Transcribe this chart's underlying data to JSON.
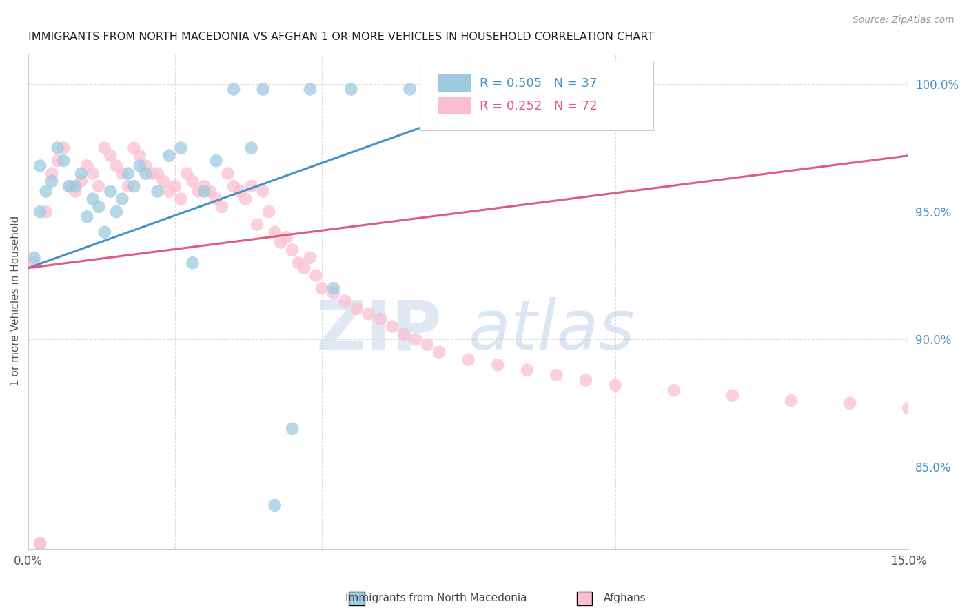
{
  "title": "IMMIGRANTS FROM NORTH MACEDONIA VS AFGHAN 1 OR MORE VEHICLES IN HOUSEHOLD CORRELATION CHART",
  "source": "Source: ZipAtlas.com",
  "ylabel": "1 or more Vehicles in Household",
  "ylabel_right_ticks": [
    "100.0%",
    "95.0%",
    "90.0%",
    "85.0%"
  ],
  "ylabel_right_values": [
    1.0,
    0.95,
    0.9,
    0.85
  ],
  "xmin": 0.0,
  "xmax": 0.15,
  "ymin": 0.818,
  "ymax": 1.012,
  "legend_label_blue": "Immigrants from North Macedonia",
  "legend_label_pink": "Afghans",
  "R_blue": "0.505",
  "N_blue": "37",
  "R_pink": "0.252",
  "N_pink": "72",
  "color_blue": "#9ecae1",
  "color_pink": "#fcbfd2",
  "color_blue_line": "#4292c6",
  "color_pink_line": "#e05c7a",
  "color_blue_text": "#4292c6",
  "color_pink_text": "#e05c7a",
  "blue_scatter_x": [
    0.001,
    0.002,
    0.002,
    0.003,
    0.004,
    0.005,
    0.006,
    0.007,
    0.008,
    0.009,
    0.01,
    0.011,
    0.012,
    0.013,
    0.014,
    0.015,
    0.016,
    0.017,
    0.018,
    0.019,
    0.02,
    0.022,
    0.024,
    0.026,
    0.028,
    0.03,
    0.032,
    0.035,
    0.038,
    0.04,
    0.042,
    0.045,
    0.048,
    0.052,
    0.055,
    0.065,
    0.09
  ],
  "blue_scatter_y": [
    0.932,
    0.95,
    0.968,
    0.958,
    0.962,
    0.975,
    0.97,
    0.96,
    0.96,
    0.965,
    0.948,
    0.955,
    0.952,
    0.942,
    0.958,
    0.95,
    0.955,
    0.965,
    0.96,
    0.968,
    0.965,
    0.958,
    0.972,
    0.975,
    0.93,
    0.958,
    0.97,
    0.998,
    0.975,
    0.998,
    0.835,
    0.865,
    0.998,
    0.92,
    0.998,
    0.998,
    0.998
  ],
  "pink_scatter_x": [
    0.001,
    0.002,
    0.003,
    0.004,
    0.005,
    0.006,
    0.007,
    0.008,
    0.009,
    0.01,
    0.011,
    0.012,
    0.013,
    0.014,
    0.015,
    0.016,
    0.017,
    0.018,
    0.019,
    0.02,
    0.021,
    0.022,
    0.023,
    0.024,
    0.025,
    0.026,
    0.027,
    0.028,
    0.029,
    0.03,
    0.031,
    0.032,
    0.033,
    0.034,
    0.035,
    0.036,
    0.037,
    0.038,
    0.039,
    0.04,
    0.041,
    0.042,
    0.043,
    0.044,
    0.045,
    0.046,
    0.047,
    0.048,
    0.049,
    0.05,
    0.052,
    0.054,
    0.056,
    0.058,
    0.06,
    0.062,
    0.064,
    0.066,
    0.068,
    0.07,
    0.075,
    0.08,
    0.085,
    0.09,
    0.095,
    0.1,
    0.11,
    0.12,
    0.13,
    0.14,
    0.15,
    0.002
  ],
  "pink_scatter_y": [
    0.93,
    0.82,
    0.95,
    0.965,
    0.97,
    0.975,
    0.96,
    0.958,
    0.962,
    0.968,
    0.965,
    0.96,
    0.975,
    0.972,
    0.968,
    0.965,
    0.96,
    0.975,
    0.972,
    0.968,
    0.965,
    0.965,
    0.962,
    0.958,
    0.96,
    0.955,
    0.965,
    0.962,
    0.958,
    0.96,
    0.958,
    0.955,
    0.952,
    0.965,
    0.96,
    0.958,
    0.955,
    0.96,
    0.945,
    0.958,
    0.95,
    0.942,
    0.938,
    0.94,
    0.935,
    0.93,
    0.928,
    0.932,
    0.925,
    0.92,
    0.918,
    0.915,
    0.912,
    0.91,
    0.908,
    0.905,
    0.902,
    0.9,
    0.898,
    0.895,
    0.892,
    0.89,
    0.888,
    0.886,
    0.884,
    0.882,
    0.88,
    0.878,
    0.876,
    0.875,
    0.873,
    0.82
  ],
  "blue_trendline": [
    0.928,
    1.002
  ],
  "blue_trendline_x": [
    0.0,
    0.09
  ],
  "pink_trendline": [
    0.928,
    0.972
  ],
  "pink_trendline_x": [
    0.0,
    0.15
  ],
  "watermark_zip": "ZIP",
  "watermark_atlas": "atlas",
  "background_color": "#ffffff",
  "grid_color": "#dddddd"
}
